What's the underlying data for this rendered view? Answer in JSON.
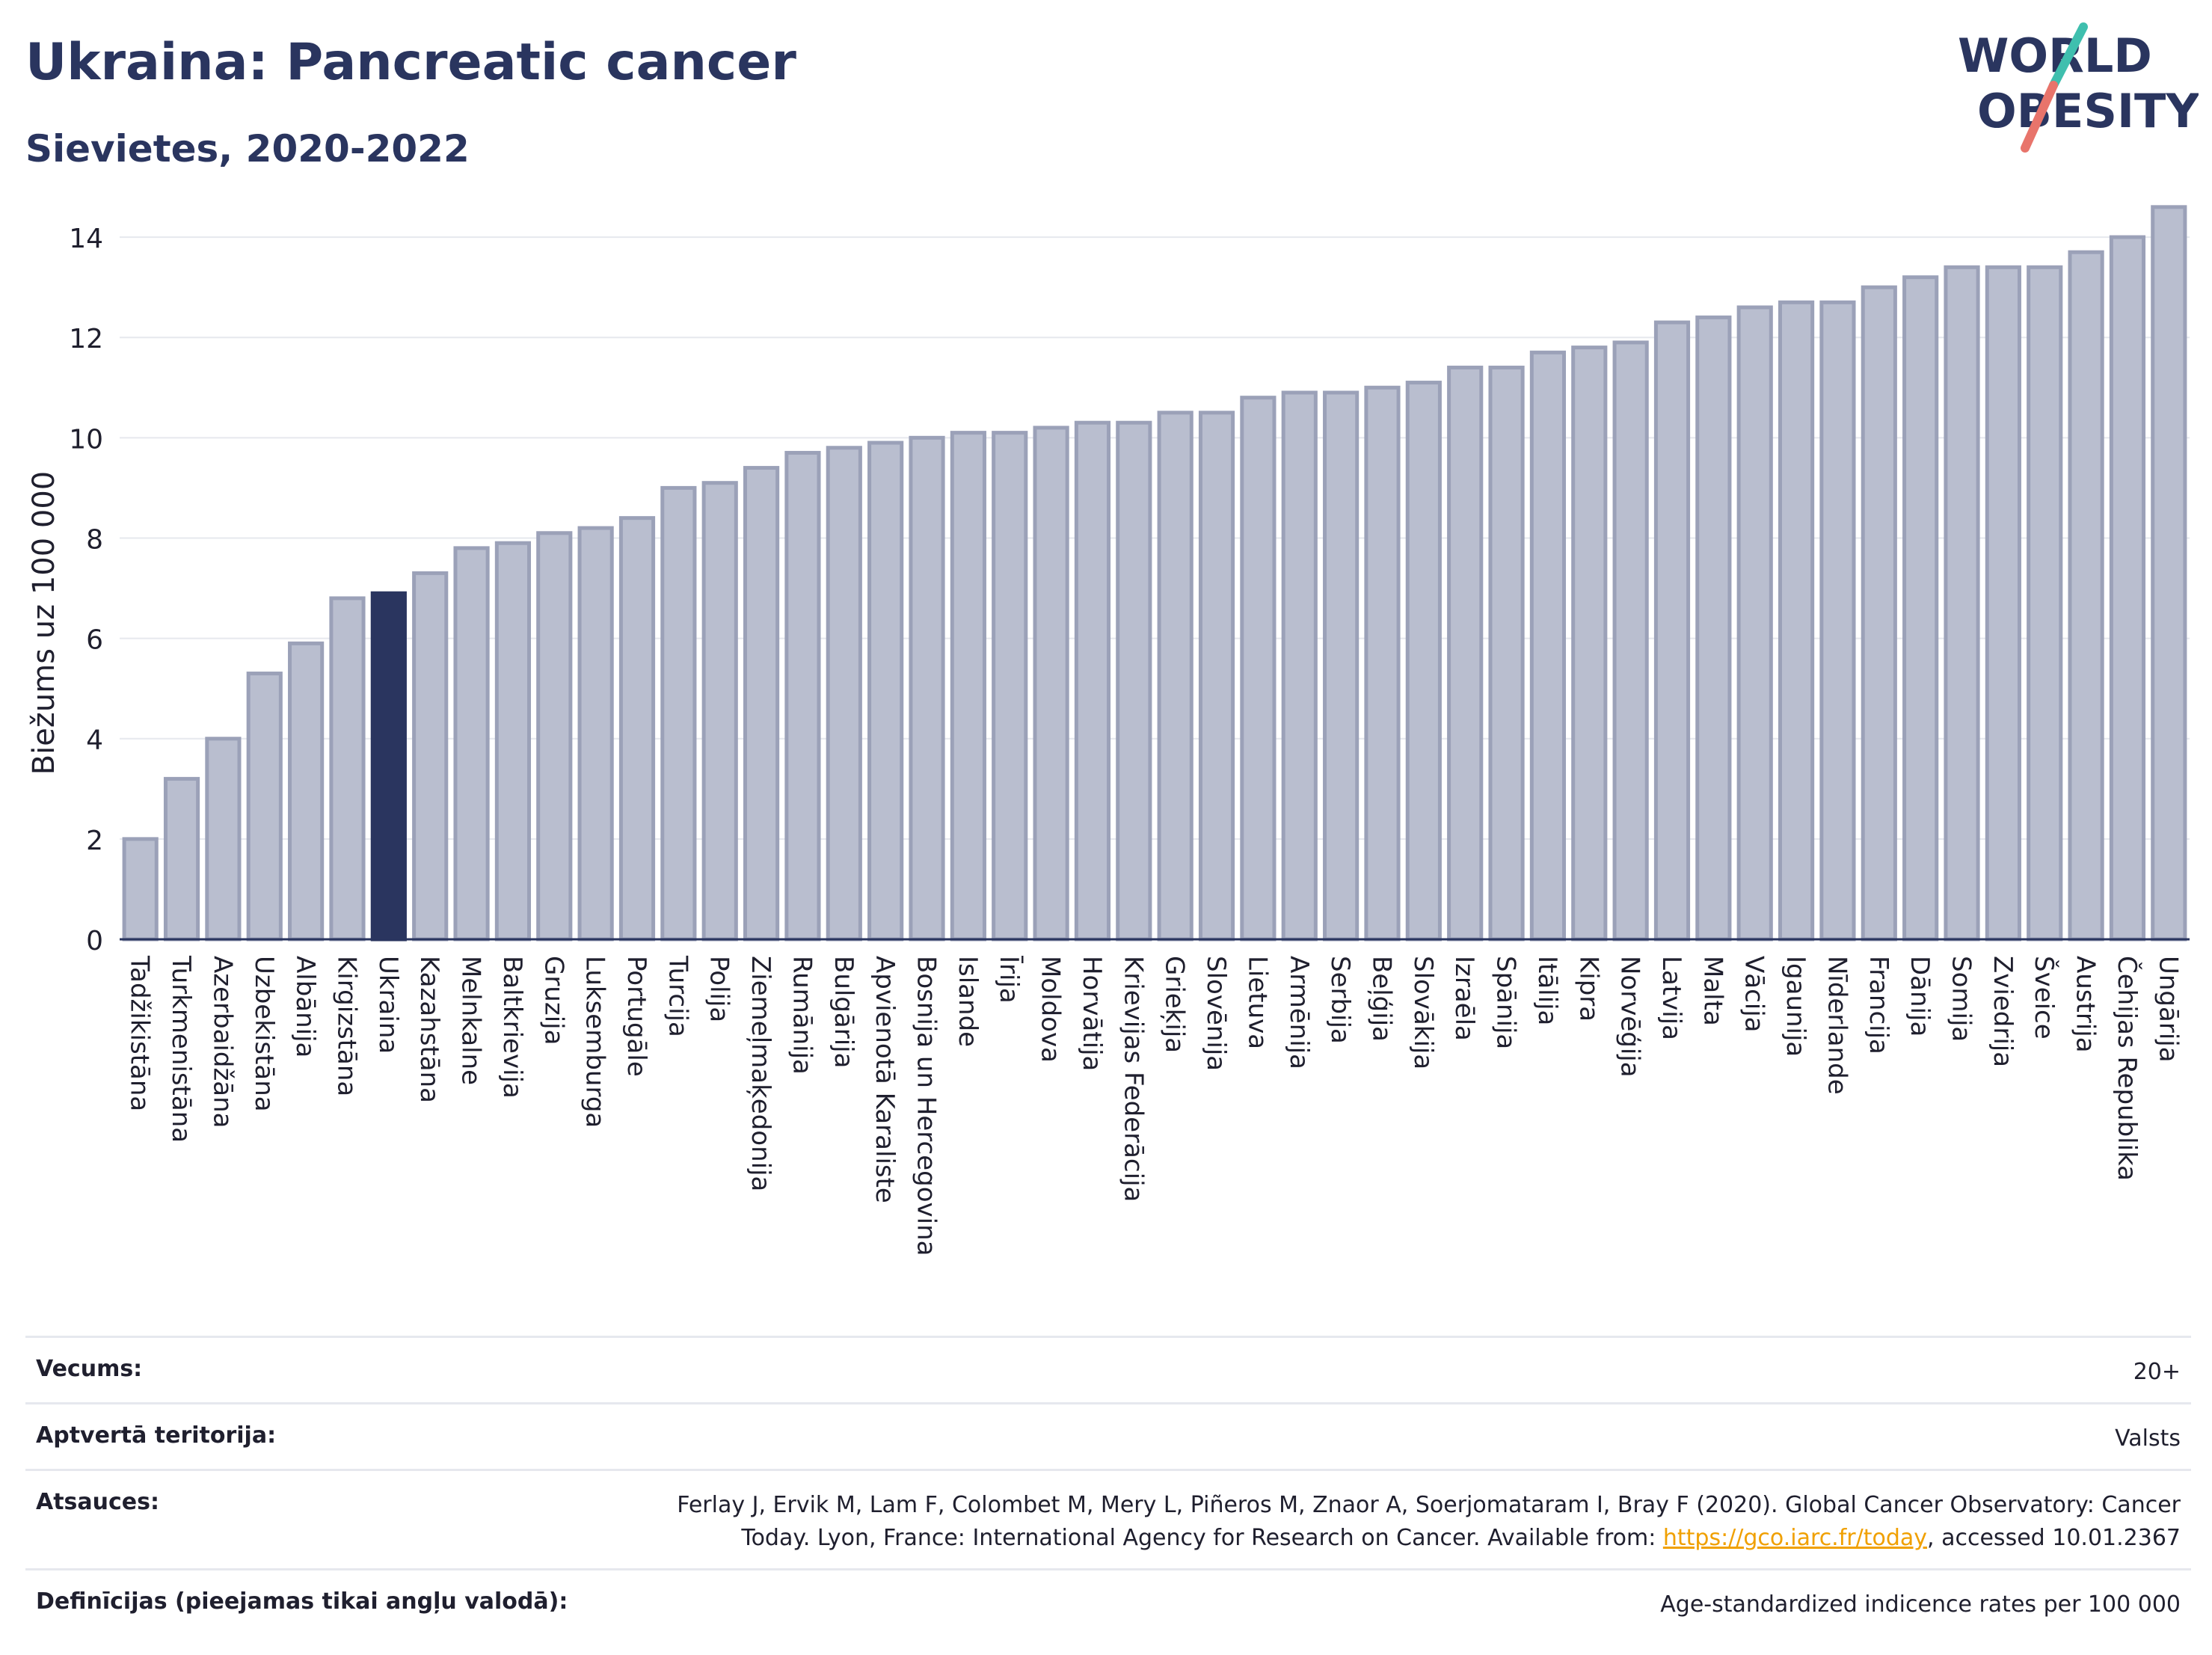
{
  "title": "Ukraina: Pancreatic cancer",
  "subtitle": "Sievietes, 2020-2022",
  "logo": {
    "line1": "WORLD",
    "line2": "OBESITY"
  },
  "colors": {
    "bar": "#b9becf",
    "bar_stroke": "#9ba1b8",
    "highlight": "#2a355f",
    "title": "#2a355f",
    "logo_teal": "#3fbfae",
    "logo_coral": "#e8746b"
  },
  "chart_data": {
    "type": "bar",
    "title": "Ukraina: Pancreatic cancer",
    "subtitle": "Sievietes, 2020-2022",
    "xlabel": "",
    "ylabel": "Biežums uz 100 000",
    "ylim": [
      0,
      15
    ],
    "yticks": [
      0,
      2,
      4,
      6,
      8,
      10,
      12,
      14
    ],
    "grid": true,
    "highlight": "Ukraina",
    "categories": [
      "Tadžikistāna",
      "Turkmenistāna",
      "Azerbaidžāna",
      "Uzbekistāna",
      "Albānija",
      "Kirgizstāna",
      "Ukraina",
      "Kazahstāna",
      "Melnkalne",
      "Baltkrievija",
      "Gruzija",
      "Luksemburga",
      "Portugāle",
      "Turcija",
      "Polija",
      "Ziemeļmaķedonija",
      "Rumānija",
      "Bulgārija",
      "Apvienotā Karaliste",
      "Bosnija un Hercegovina",
      "Islande",
      "Īrija",
      "Moldova",
      "Horvātija",
      "Krievijas Federācija",
      "Grieķija",
      "Slovēnija",
      "Lietuva",
      "Armēnija",
      "Serbija",
      "Beļģija",
      "Slovākija",
      "Izraēla",
      "Spānija",
      "Itālija",
      "Kipra",
      "Norvēģija",
      "Latvija",
      "Malta",
      "Vācija",
      "Igaunija",
      "Nīderlande",
      "Francija",
      "Dānija",
      "Somija",
      "Zviedrija",
      "Šveice",
      "Austrija",
      "Čehijas Republika",
      "Ungārija"
    ],
    "values": [
      2.0,
      3.2,
      4.0,
      5.3,
      5.9,
      6.8,
      6.9,
      7.3,
      7.8,
      7.9,
      8.1,
      8.2,
      8.4,
      9.0,
      9.1,
      9.4,
      9.7,
      9.8,
      9.9,
      10.0,
      10.1,
      10.1,
      10.2,
      10.3,
      10.3,
      10.5,
      10.5,
      10.8,
      10.9,
      10.9,
      11.0,
      11.1,
      11.4,
      11.4,
      11.7,
      11.8,
      11.9,
      12.3,
      12.4,
      12.6,
      12.7,
      12.7,
      13.0,
      13.2,
      13.4,
      13.4,
      13.4,
      13.7,
      14.0,
      14.6
    ]
  },
  "info": [
    {
      "key": "Vecums:",
      "value": "20+"
    },
    {
      "key": "Aptvertā teritorija:",
      "value": "Valsts"
    },
    {
      "key": "Atsauces:",
      "value_line1": "Ferlay J, Ervik M, Lam F, Colombet M, Mery L, Piñeros M, Znaor A, Soerjomataram I, Bray F (2020). Global Cancer Observatory: Cancer",
      "value_pre": "Today. Lyon, France: International Agency for Research on Cancer. Available from: ",
      "link": "https://gco.iarc.fr/today",
      "value_post": ", accessed 10.01.2367"
    },
    {
      "key": "Definīcijas (pieejamas tikai angļu valodā):",
      "value": "Age-standardized indicence rates per 100 000"
    }
  ]
}
